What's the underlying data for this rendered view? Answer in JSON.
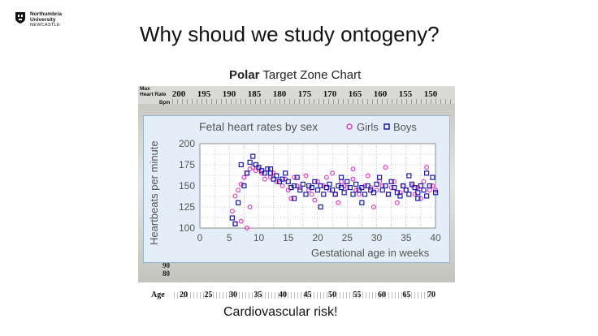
{
  "slide": {
    "logo": {
      "line1": "Northumbria",
      "line2": "University",
      "line3": "NEWCASTLE"
    },
    "title": "Why shoud we study ontogeny?",
    "caption": "Cardiovascular risk!"
  },
  "polar_chart": {
    "brand": "Polar",
    "title_rest": "Target Zone Chart",
    "max_hr_label_1": "Max",
    "max_hr_label_2": "Heart Rate",
    "bpm_label": "Bpm",
    "hr_scale": [
      "200",
      "195",
      "190",
      "185",
      "180",
      "175",
      "170",
      "165",
      "160",
      "155",
      "150"
    ],
    "left_nums": [
      "90",
      "80"
    ],
    "age_label": "Age",
    "age_scale": [
      "20",
      "25",
      "30",
      "35",
      "40",
      "45",
      "50",
      "55",
      "60",
      "65",
      "70"
    ]
  },
  "colors": {
    "girls": "#e040c0",
    "boys": "#1a1aa8",
    "fetal_bg": "#e4eef8",
    "grid": "#9a9a9a"
  },
  "chart_data": {
    "type": "scatter",
    "title": "Fetal heart rates by sex",
    "xlabel": "Gestational age in weeks",
    "ylabel": "Heartbeats per minute",
    "xlim": [
      0,
      40
    ],
    "ylim": [
      100,
      200
    ],
    "xticks": [
      0,
      5,
      10,
      15,
      20,
      25,
      30,
      35,
      40
    ],
    "yticks": [
      100,
      125,
      150,
      175,
      200
    ],
    "grid": true,
    "legend": "top",
    "series": [
      {
        "name": "Girls",
        "marker": "circle",
        "points": [
          [
            5.5,
            120
          ],
          [
            6,
            138
          ],
          [
            6.5,
            145
          ],
          [
            7,
            152
          ],
          [
            7.5,
            160
          ],
          [
            8,
            165
          ],
          [
            8.5,
            170
          ],
          [
            9,
            172
          ],
          [
            9.5,
            168
          ],
          [
            10,
            170
          ],
          [
            10.5,
            165
          ],
          [
            11,
            158
          ],
          [
            6,
            105
          ],
          [
            7,
            108
          ],
          [
            8,
            100
          ],
          [
            8.5,
            125
          ],
          [
            12,
            160
          ],
          [
            12.5,
            165
          ],
          [
            13,
            155
          ],
          [
            14,
            150
          ],
          [
            14.5,
            158
          ],
          [
            15,
            145
          ],
          [
            16,
            160
          ],
          [
            16.5,
            150
          ],
          [
            17,
            148
          ],
          [
            18,
            162
          ],
          [
            18.5,
            145
          ],
          [
            19,
            140
          ],
          [
            20,
            155
          ],
          [
            21,
            150
          ],
          [
            21.5,
            160
          ],
          [
            22,
            145
          ],
          [
            23,
            140
          ],
          [
            24,
            155
          ],
          [
            24.5,
            150
          ],
          [
            25,
            148
          ],
          [
            26,
            158
          ],
          [
            26.5,
            145
          ],
          [
            27,
            140
          ],
          [
            28,
            150
          ],
          [
            28.5,
            162
          ],
          [
            29,
            148
          ],
          [
            30,
            145
          ],
          [
            30.5,
            155
          ],
          [
            31,
            150
          ],
          [
            32,
            140
          ],
          [
            32.5,
            148
          ],
          [
            33,
            155
          ],
          [
            34,
            142
          ],
          [
            34.5,
            150
          ],
          [
            35,
            145
          ],
          [
            36,
            150
          ],
          [
            36.5,
            140
          ],
          [
            37,
            148
          ],
          [
            37.5,
            135
          ],
          [
            38,
            155
          ],
          [
            38.5,
            172
          ],
          [
            39,
            145
          ],
          [
            39.5,
            150
          ],
          [
            40,
            145
          ],
          [
            26,
            170
          ],
          [
            31.5,
            172
          ],
          [
            22.5,
            165
          ],
          [
            23.5,
            130
          ],
          [
            29.5,
            125
          ],
          [
            33.5,
            130
          ],
          [
            15.5,
            135
          ],
          [
            19.5,
            133
          ]
        ]
      },
      {
        "name": "Boys",
        "marker": "square",
        "points": [
          [
            5.5,
            112
          ],
          [
            6,
            105
          ],
          [
            6.5,
            130
          ],
          [
            7,
            175
          ],
          [
            7.5,
            150
          ],
          [
            8,
            165
          ],
          [
            8.5,
            178
          ],
          [
            9,
            185
          ],
          [
            9.5,
            175
          ],
          [
            10,
            172
          ],
          [
            10.5,
            168
          ],
          [
            11,
            165
          ],
          [
            11.5,
            170
          ],
          [
            12,
            165
          ],
          [
            12.5,
            158
          ],
          [
            13,
            162
          ],
          [
            13.5,
            155
          ],
          [
            14,
            158
          ],
          [
            14.5,
            165
          ],
          [
            15,
            155
          ],
          [
            15.5,
            148
          ],
          [
            16,
            150
          ],
          [
            16.5,
            160
          ],
          [
            17,
            145
          ],
          [
            17.5,
            152
          ],
          [
            18,
            140
          ],
          [
            18.5,
            150
          ],
          [
            19,
            148
          ],
          [
            19.5,
            155
          ],
          [
            20,
            145
          ],
          [
            20.5,
            150
          ],
          [
            21,
            140
          ],
          [
            21.5,
            148
          ],
          [
            22,
            152
          ],
          [
            22.5,
            145
          ],
          [
            23,
            140
          ],
          [
            23.5,
            150
          ],
          [
            24,
            148
          ],
          [
            24.5,
            142
          ],
          [
            25,
            155
          ],
          [
            25.5,
            148
          ],
          [
            26,
            140
          ],
          [
            26.5,
            152
          ],
          [
            27,
            145
          ],
          [
            27.5,
            148
          ],
          [
            28,
            140
          ],
          [
            28.5,
            150
          ],
          [
            29,
            145
          ],
          [
            29.5,
            142
          ],
          [
            30,
            152
          ],
          [
            30.5,
            160
          ],
          [
            31,
            145
          ],
          [
            31.5,
            150
          ],
          [
            32,
            140
          ],
          [
            32.5,
            155
          ],
          [
            33,
            148
          ],
          [
            33.5,
            142
          ],
          [
            34,
            138
          ],
          [
            34.5,
            150
          ],
          [
            35,
            145
          ],
          [
            35.5,
            140
          ],
          [
            36,
            152
          ],
          [
            36.5,
            148
          ],
          [
            37,
            142
          ],
          [
            37.5,
            150
          ],
          [
            38,
            145
          ],
          [
            38.5,
            138
          ],
          [
            39,
            150
          ],
          [
            39.5,
            160
          ],
          [
            40,
            142
          ],
          [
            35.5,
            162
          ],
          [
            37,
            135
          ],
          [
            38.5,
            165
          ],
          [
            24,
            160
          ],
          [
            27.5,
            130
          ],
          [
            20.5,
            125
          ],
          [
            16,
            135
          ],
          [
            12,
            170
          ]
        ]
      }
    ]
  }
}
